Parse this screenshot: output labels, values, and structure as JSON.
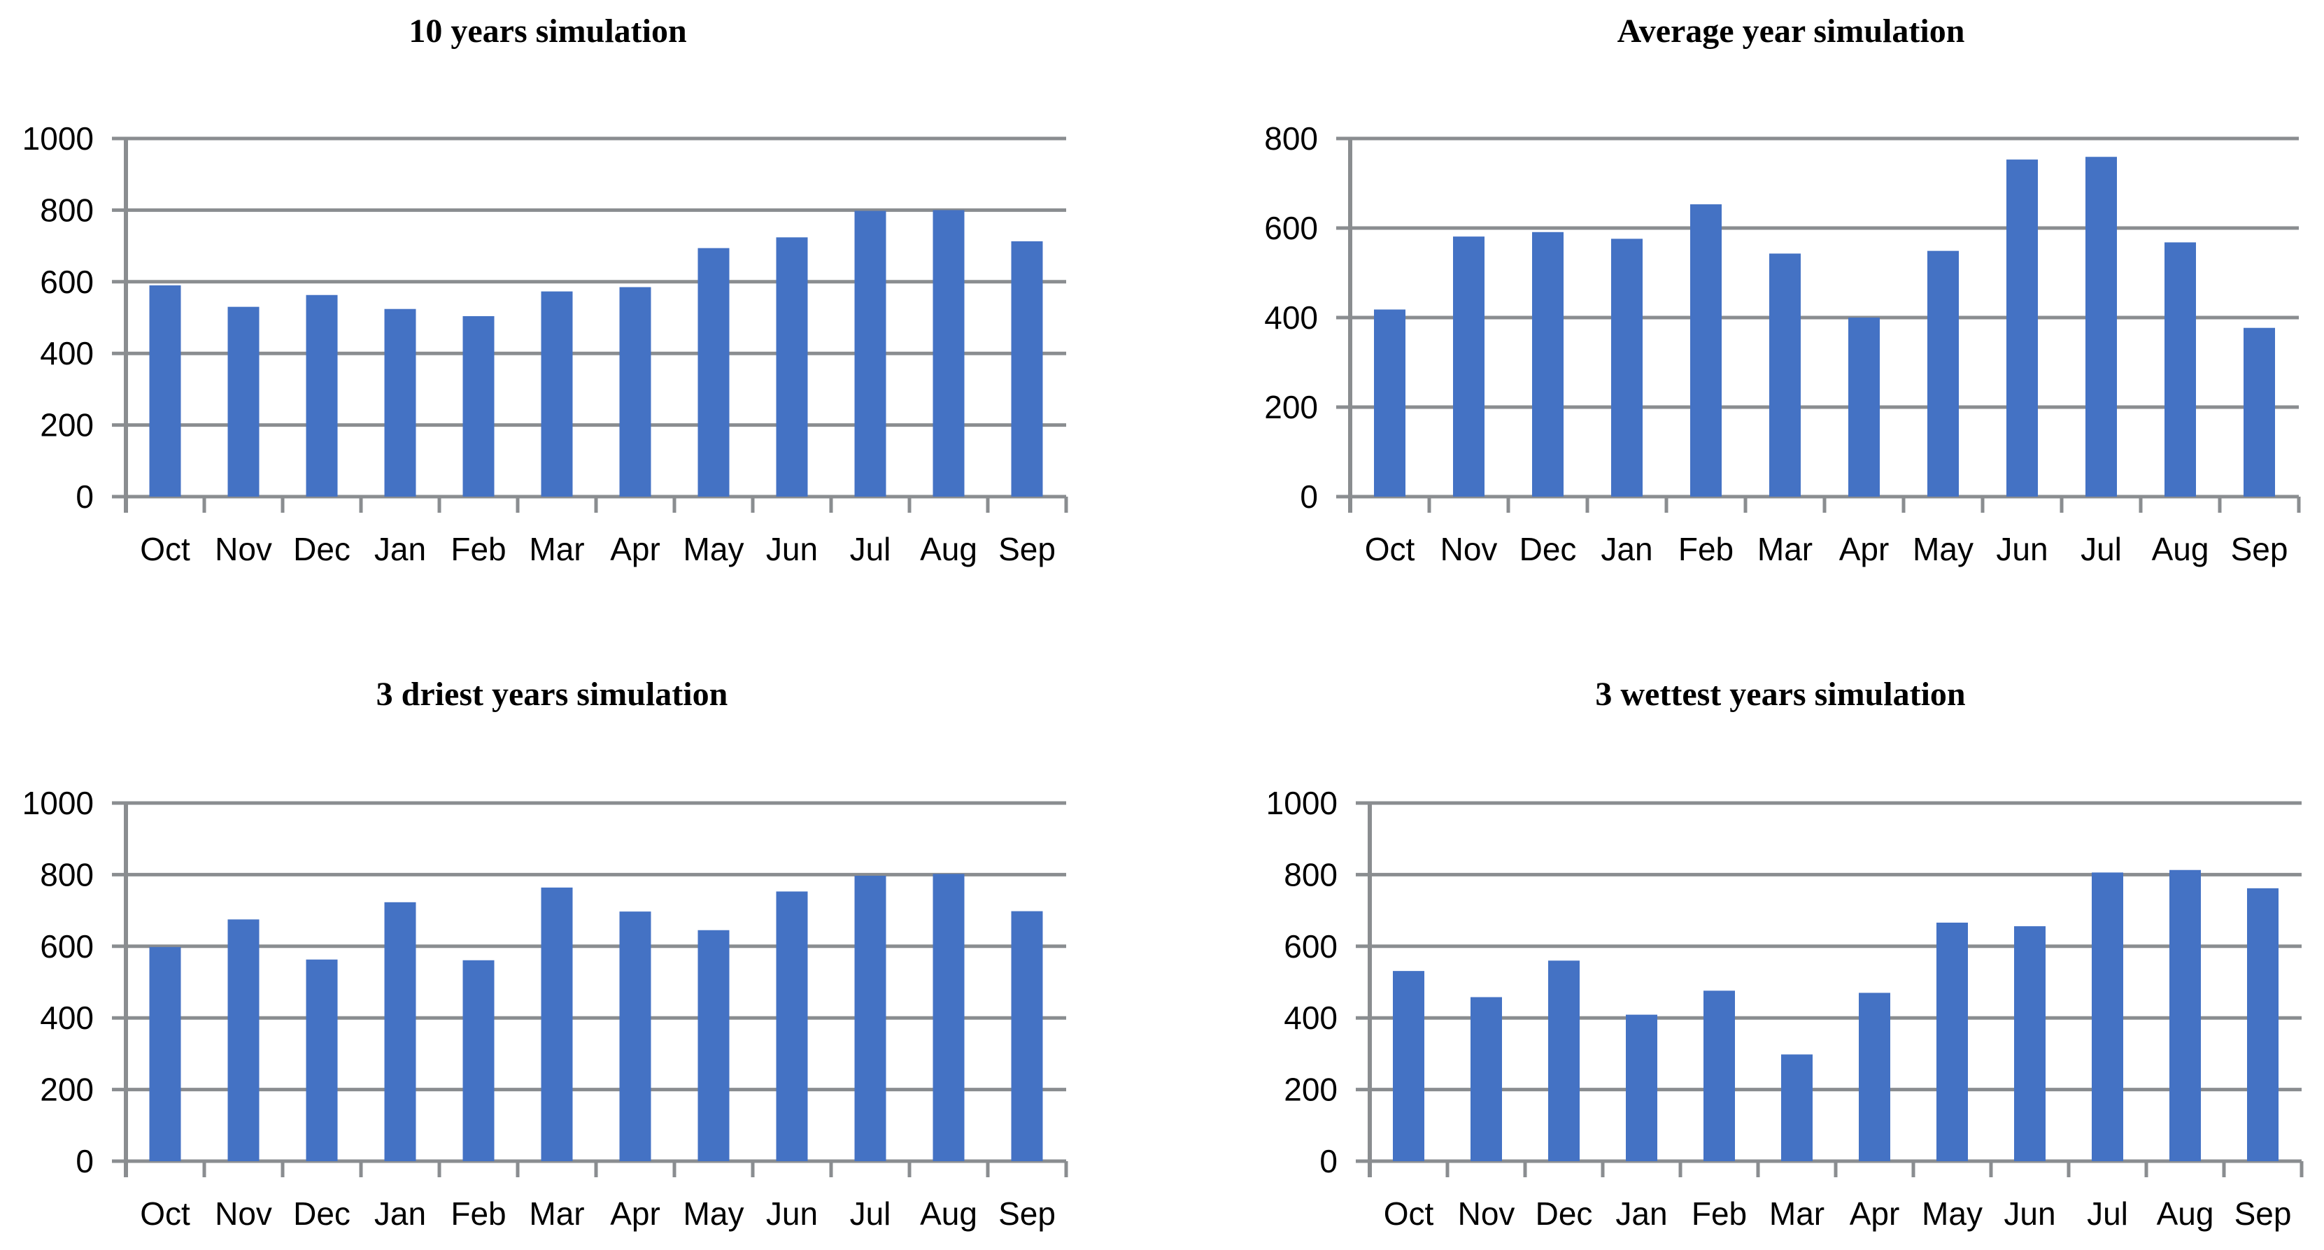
{
  "page": {
    "title": "Simulation monthly bar charts",
    "background": "#FFFFFF"
  },
  "colors": {
    "bar_fill": "#4472C4",
    "grid_line": "#8A8D90",
    "label_text": "#000000"
  },
  "chart_data": [
    {
      "type": "bar",
      "title": "10 years simulation",
      "categories": [
        "Oct",
        "Nov",
        "Dec",
        "Jan",
        "Feb",
        "Mar",
        "Apr",
        "May",
        "Jun",
        "Jul",
        "Aug",
        "Sep"
      ],
      "values": [
        590,
        530,
        563,
        524,
        504,
        573,
        585,
        694,
        724,
        798,
        800,
        713
      ],
      "xlabel": "",
      "ylabel": "",
      "ylim": [
        0,
        1000
      ],
      "yticks": [
        0,
        200,
        400,
        600,
        800,
        1000
      ],
      "grid": true,
      "legend": "none"
    },
    {
      "type": "bar",
      "title": "Average year simulation",
      "categories": [
        "Oct",
        "Nov",
        "Dec",
        "Jan",
        "Feb",
        "Mar",
        "Apr",
        "May",
        "Jun",
        "Jul",
        "Aug",
        "Sep"
      ],
      "values": [
        418,
        581,
        591,
        576,
        653,
        543,
        400,
        549,
        753,
        759,
        568,
        377
      ],
      "xlabel": "",
      "ylabel": "",
      "ylim": [
        0,
        800
      ],
      "yticks": [
        0,
        200,
        400,
        600,
        800
      ],
      "grid": true,
      "legend": "none"
    },
    {
      "type": "bar",
      "title": "3 driest years simulation",
      "categories": [
        "Oct",
        "Nov",
        "Dec",
        "Jan",
        "Feb",
        "Mar",
        "Apr",
        "May",
        "Jun",
        "Jul",
        "Aug",
        "Sep"
      ],
      "values": [
        598,
        675,
        563,
        723,
        561,
        764,
        697,
        645,
        753,
        797,
        802,
        698
      ],
      "xlabel": "",
      "ylabel": "",
      "ylim": [
        0,
        1000
      ],
      "yticks": [
        0,
        200,
        400,
        600,
        800,
        1000
      ],
      "grid": true,
      "legend": "none"
    },
    {
      "type": "bar",
      "title": "3 wettest years simulation",
      "categories": [
        "Oct",
        "Nov",
        "Dec",
        "Jan",
        "Feb",
        "Mar",
        "Apr",
        "May",
        "Jun",
        "Jul",
        "Aug",
        "Sep"
      ],
      "values": [
        531,
        458,
        560,
        409,
        476,
        298,
        470,
        666,
        656,
        806,
        813,
        762
      ],
      "xlabel": "",
      "ylabel": "",
      "ylim": [
        0,
        1000
      ],
      "yticks": [
        0,
        200,
        400,
        600,
        800,
        1000
      ],
      "grid": true,
      "legend": "none"
    }
  ]
}
